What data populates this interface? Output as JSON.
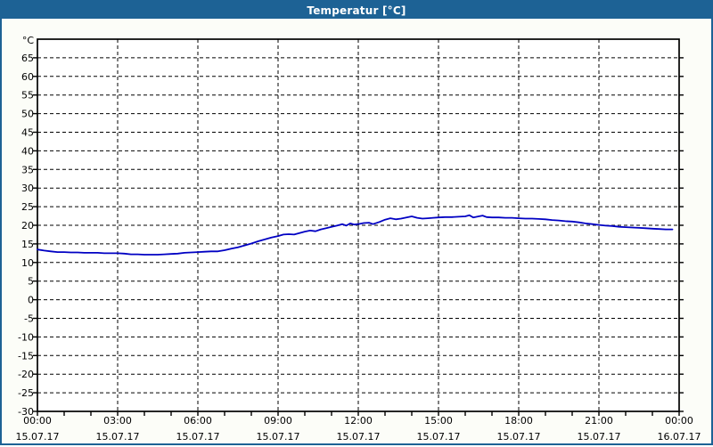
{
  "window": {
    "title": "Temperatur [°C]",
    "title_bar_color": "#1d6295",
    "border_color": "#1d6295",
    "background_color": "#fcfdf8",
    "plot_background_color": "#ffffff"
  },
  "chart_data": {
    "type": "line",
    "title": "Temperatur [°C]",
    "unit_label": "°C",
    "grid": true,
    "grid_color": "#000000",
    "axis_color": "#000000",
    "y_axis": {
      "range": [
        -30,
        70
      ],
      "tick_min": -30,
      "tick_max": 65,
      "tick_step": 5,
      "tick_labels": [
        "65",
        "60",
        "55",
        "50",
        "45",
        "40",
        "35",
        "30",
        "25",
        "20",
        "15",
        "10",
        "5",
        "0",
        "-5",
        "-10",
        "-15",
        "-20",
        "-25",
        "-30"
      ]
    },
    "x_axis": {
      "range_hours": [
        0,
        24
      ],
      "minor_tick_hours": 1,
      "major_tick_hours": 3,
      "labels": [
        {
          "time": "00:00",
          "date": "15.07.17"
        },
        {
          "time": "03:00",
          "date": "15.07.17"
        },
        {
          "time": "06:00",
          "date": "15.07.17"
        },
        {
          "time": "09:00",
          "date": "15.07.17"
        },
        {
          "time": "12:00",
          "date": "15.07.17"
        },
        {
          "time": "15:00",
          "date": "15.07.17"
        },
        {
          "time": "18:00",
          "date": "15.07.17"
        },
        {
          "time": "21:00",
          "date": "15.07.17"
        },
        {
          "time": "00:00",
          "date": "16.07.17"
        }
      ]
    },
    "series": [
      {
        "name": "Temperatur",
        "color": "#0000c3",
        "points": [
          [
            0.0,
            13.5
          ],
          [
            0.25,
            13.2
          ],
          [
            0.5,
            13.0
          ],
          [
            0.75,
            12.8
          ],
          [
            1.0,
            12.8
          ],
          [
            1.25,
            12.7
          ],
          [
            1.5,
            12.7
          ],
          [
            1.75,
            12.6
          ],
          [
            2.0,
            12.6
          ],
          [
            2.25,
            12.6
          ],
          [
            2.5,
            12.5
          ],
          [
            2.75,
            12.5
          ],
          [
            3.0,
            12.5
          ],
          [
            3.25,
            12.4
          ],
          [
            3.5,
            12.2
          ],
          [
            3.75,
            12.2
          ],
          [
            4.0,
            12.1
          ],
          [
            4.25,
            12.1
          ],
          [
            4.5,
            12.1
          ],
          [
            4.75,
            12.2
          ],
          [
            5.0,
            12.3
          ],
          [
            5.25,
            12.4
          ],
          [
            5.5,
            12.6
          ],
          [
            5.75,
            12.7
          ],
          [
            6.0,
            12.8
          ],
          [
            6.25,
            12.9
          ],
          [
            6.5,
            13.0
          ],
          [
            6.75,
            13.0
          ],
          [
            7.0,
            13.3
          ],
          [
            7.25,
            13.7
          ],
          [
            7.5,
            14.1
          ],
          [
            7.75,
            14.6
          ],
          [
            8.0,
            15.1
          ],
          [
            8.25,
            15.7
          ],
          [
            8.5,
            16.2
          ],
          [
            8.75,
            16.7
          ],
          [
            9.0,
            17.1
          ],
          [
            9.2,
            17.5
          ],
          [
            9.4,
            17.6
          ],
          [
            9.6,
            17.5
          ],
          [
            9.8,
            17.9
          ],
          [
            10.0,
            18.3
          ],
          [
            10.2,
            18.6
          ],
          [
            10.4,
            18.4
          ],
          [
            10.6,
            18.9
          ],
          [
            10.8,
            19.2
          ],
          [
            11.0,
            19.6
          ],
          [
            11.2,
            19.9
          ],
          [
            11.4,
            20.3
          ],
          [
            11.55,
            19.9
          ],
          [
            11.7,
            20.5
          ],
          [
            11.85,
            20.2
          ],
          [
            12.0,
            20.3
          ],
          [
            12.2,
            20.6
          ],
          [
            12.4,
            20.7
          ],
          [
            12.55,
            20.3
          ],
          [
            12.8,
            20.9
          ],
          [
            13.0,
            21.5
          ],
          [
            13.2,
            21.9
          ],
          [
            13.4,
            21.6
          ],
          [
            13.6,
            21.8
          ],
          [
            13.8,
            22.1
          ],
          [
            14.0,
            22.4
          ],
          [
            14.2,
            22.0
          ],
          [
            14.4,
            21.8
          ],
          [
            14.6,
            21.9
          ],
          [
            14.8,
            22.0
          ],
          [
            15.0,
            22.1
          ],
          [
            15.25,
            22.2
          ],
          [
            15.5,
            22.2
          ],
          [
            15.75,
            22.3
          ],
          [
            16.0,
            22.4
          ],
          [
            16.15,
            22.7
          ],
          [
            16.3,
            22.1
          ],
          [
            16.5,
            22.4
          ],
          [
            16.65,
            22.6
          ],
          [
            16.8,
            22.2
          ],
          [
            17.0,
            22.1
          ],
          [
            17.25,
            22.1
          ],
          [
            17.5,
            22.0
          ],
          [
            17.75,
            22.0
          ],
          [
            18.0,
            21.9
          ],
          [
            18.25,
            21.8
          ],
          [
            18.5,
            21.8
          ],
          [
            18.75,
            21.7
          ],
          [
            19.0,
            21.6
          ],
          [
            19.25,
            21.4
          ],
          [
            19.5,
            21.3
          ],
          [
            19.75,
            21.1
          ],
          [
            20.0,
            21.0
          ],
          [
            20.25,
            20.8
          ],
          [
            20.5,
            20.5
          ],
          [
            20.75,
            20.3
          ],
          [
            21.0,
            20.1
          ],
          [
            21.25,
            19.9
          ],
          [
            21.5,
            19.8
          ],
          [
            21.75,
            19.6
          ],
          [
            22.0,
            19.5
          ],
          [
            22.25,
            19.4
          ],
          [
            22.5,
            19.3
          ],
          [
            22.75,
            19.2
          ],
          [
            23.0,
            19.1
          ],
          [
            23.25,
            19.0
          ],
          [
            23.5,
            18.9
          ],
          [
            23.75,
            18.9
          ]
        ]
      }
    ]
  }
}
